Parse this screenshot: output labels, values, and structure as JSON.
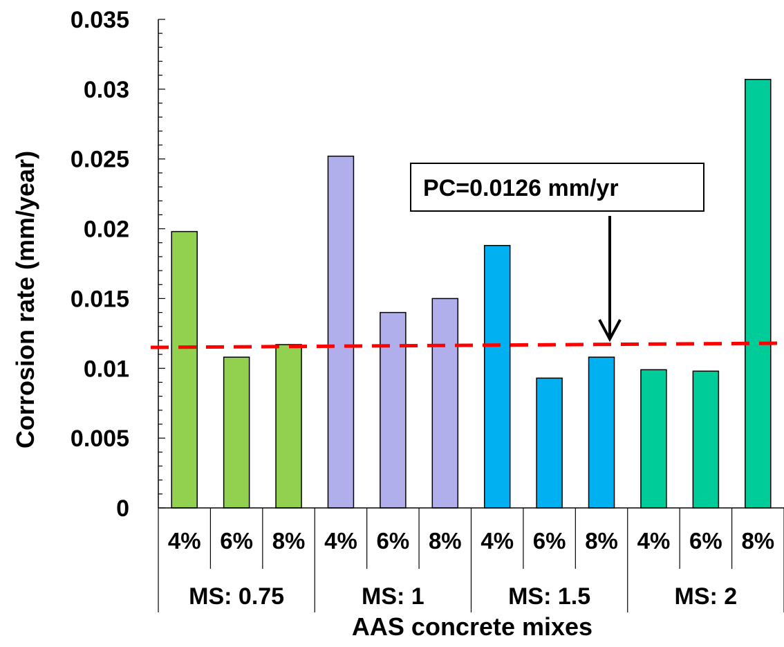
{
  "chart_data": {
    "type": "bar",
    "xlabel": "AAS concrete mixes",
    "ylabel": "Corrosion rate (mm/year)",
    "ylim": [
      0,
      0.035
    ],
    "yticks": [
      "0",
      "0.005",
      "0.01",
      "0.015",
      "0.02",
      "0.025",
      "0.03",
      "0.035"
    ],
    "yticks_values": [
      0,
      0.005,
      0.01,
      0.015,
      0.02,
      0.025,
      0.03,
      0.035
    ],
    "categories": [
      "4%",
      "6%",
      "8%",
      "4%",
      "6%",
      "8%",
      "4%",
      "6%",
      "8%",
      "4%",
      "6%",
      "8%"
    ],
    "values": [
      0.0198,
      0.0108,
      0.0117,
      0.0252,
      0.014,
      0.015,
      0.0188,
      0.0093,
      0.0108,
      0.0099,
      0.0098,
      0.0307
    ],
    "groups": [
      {
        "label": "MS: 0.75",
        "color": "#92d050"
      },
      {
        "label": "MS: 1",
        "color": "#b0aeeb"
      },
      {
        "label": "MS: 1.5",
        "color": "#00b0f0"
      },
      {
        "label": "MS: 2",
        "color": "#00cc99"
      }
    ],
    "reference_line": {
      "value": 0.0115,
      "end_value": 0.0118,
      "color": "#ff0000",
      "style": "dashed"
    },
    "annotation": {
      "text": "PC=0.0126 mm/yr"
    },
    "grid": false
  }
}
